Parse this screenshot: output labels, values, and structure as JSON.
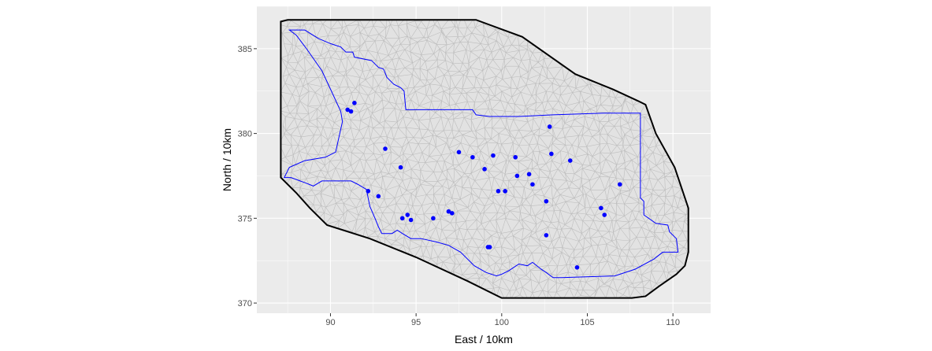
{
  "chart_data": {
    "type": "scatter",
    "title": "",
    "xlabel": "East / 10km",
    "ylabel": "North / 10km",
    "xlim": [
      85.7,
      112.2
    ],
    "ylim": [
      369.4,
      387.5
    ],
    "xticks": [
      90,
      95,
      100,
      105,
      110
    ],
    "yticks": [
      370,
      375,
      380,
      385
    ],
    "grid": true,
    "colors": {
      "panel": "#ebebeb",
      "grid": "#ffffff",
      "mesh_fill": "#e2e2e2",
      "mesh_lines": "#bdbdbd",
      "hull": "#000000",
      "boundary": "#0000ff",
      "points": "#0000ff"
    },
    "mesh_hull": [
      [
        87.1,
        386.6
      ],
      [
        87.5,
        386.7
      ],
      [
        91.8,
        386.7
      ],
      [
        93.6,
        386.7
      ],
      [
        96.0,
        386.7
      ],
      [
        98.5,
        386.7
      ],
      [
        101.2,
        385.7
      ],
      [
        104.3,
        383.5
      ],
      [
        106.5,
        382.6
      ],
      [
        108.0,
        381.9
      ],
      [
        108.4,
        381.7
      ],
      [
        109.0,
        380.0
      ],
      [
        110.1,
        378.0
      ],
      [
        110.9,
        375.6
      ],
      [
        110.9,
        373.0
      ],
      [
        110.7,
        372.2
      ],
      [
        110.2,
        371.7
      ],
      [
        109.2,
        371.0
      ],
      [
        108.4,
        370.4
      ],
      [
        107.6,
        370.3
      ],
      [
        100.0,
        370.3
      ],
      [
        98.0,
        371.3
      ],
      [
        95.0,
        372.7
      ],
      [
        92.3,
        373.8
      ],
      [
        89.8,
        374.6
      ],
      [
        88.8,
        375.6
      ],
      [
        88.0,
        376.5
      ],
      [
        87.1,
        377.4
      ],
      [
        87.1,
        384.6
      ],
      [
        87.1,
        386.1
      ]
    ],
    "study_region_boundary": [
      [
        87.6,
        386.1
      ],
      [
        88.5,
        386.1
      ],
      [
        89.3,
        385.6
      ],
      [
        90.0,
        385.3
      ],
      [
        90.6,
        385.1
      ],
      [
        90.9,
        384.8
      ],
      [
        91.3,
        384.8
      ],
      [
        91.4,
        384.5
      ],
      [
        92.4,
        384.3
      ],
      [
        92.8,
        383.9
      ],
      [
        93.1,
        383.8
      ],
      [
        93.3,
        383.3
      ],
      [
        93.7,
        382.9
      ],
      [
        94.1,
        382.7
      ],
      [
        94.3,
        382.5
      ],
      [
        94.4,
        381.4
      ],
      [
        95.8,
        381.4
      ],
      [
        98.3,
        381.4
      ],
      [
        98.5,
        381.1
      ],
      [
        99.3,
        381.0
      ],
      [
        101.0,
        381.0
      ],
      [
        103.0,
        381.1
      ],
      [
        106.0,
        381.2
      ],
      [
        108.1,
        381.2
      ],
      [
        108.1,
        376.2
      ],
      [
        108.3,
        376.0
      ],
      [
        108.3,
        375.2
      ],
      [
        109.0,
        374.7
      ],
      [
        109.7,
        374.6
      ],
      [
        109.8,
        374.2
      ],
      [
        110.2,
        373.8
      ],
      [
        110.3,
        373.0
      ],
      [
        109.4,
        373.0
      ],
      [
        108.9,
        372.6
      ],
      [
        107.8,
        372.0
      ],
      [
        106.6,
        371.6
      ],
      [
        103.5,
        371.5
      ],
      [
        103.0,
        371.5
      ],
      [
        102.6,
        371.8
      ],
      [
        102.3,
        372.0
      ],
      [
        101.8,
        372.4
      ],
      [
        101.5,
        372.2
      ],
      [
        101.0,
        372.3
      ],
      [
        100.7,
        372.1
      ],
      [
        100.4,
        371.9
      ],
      [
        100.0,
        371.7
      ],
      [
        99.7,
        371.6
      ],
      [
        99.1,
        371.8
      ],
      [
        98.4,
        372.2
      ],
      [
        97.6,
        373.0
      ],
      [
        96.9,
        373.4
      ],
      [
        96.2,
        373.6
      ],
      [
        95.3,
        373.8
      ],
      [
        94.7,
        373.8
      ],
      [
        94.2,
        374.1
      ],
      [
        93.9,
        374.3
      ],
      [
        93.6,
        374.1
      ],
      [
        93.0,
        374.1
      ],
      [
        92.8,
        374.5
      ],
      [
        92.6,
        375.0
      ],
      [
        92.3,
        375.7
      ],
      [
        92.1,
        376.7
      ],
      [
        91.6,
        377.0
      ],
      [
        91.2,
        377.2
      ],
      [
        90.1,
        377.2
      ],
      [
        89.5,
        377.2
      ],
      [
        89.0,
        376.9
      ],
      [
        88.5,
        377.1
      ],
      [
        87.7,
        377.4
      ],
      [
        87.3,
        377.4
      ],
      [
        87.6,
        378.0
      ],
      [
        88.5,
        378.4
      ],
      [
        89.7,
        378.6
      ],
      [
        90.3,
        378.9
      ],
      [
        90.5,
        379.8
      ],
      [
        90.7,
        380.7
      ],
      [
        90.6,
        381.3
      ],
      [
        90.1,
        382.4
      ],
      [
        89.5,
        383.7
      ],
      [
        88.6,
        385.0
      ],
      [
        88.0,
        385.8
      ]
    ],
    "points": [
      {
        "x": 91.4,
        "y": 381.8
      },
      {
        "x": 91.0,
        "y": 381.4
      },
      {
        "x": 91.2,
        "y": 381.3
      },
      {
        "x": 93.2,
        "y": 379.1
      },
      {
        "x": 94.1,
        "y": 378.0
      },
      {
        "x": 92.2,
        "y": 376.6
      },
      {
        "x": 92.8,
        "y": 376.3
      },
      {
        "x": 94.2,
        "y": 375.0
      },
      {
        "x": 94.5,
        "y": 375.2
      },
      {
        "x": 94.7,
        "y": 374.9
      },
      {
        "x": 96.0,
        "y": 375.0
      },
      {
        "x": 96.9,
        "y": 375.4
      },
      {
        "x": 97.1,
        "y": 375.3
      },
      {
        "x": 97.5,
        "y": 378.9
      },
      {
        "x": 98.3,
        "y": 378.6
      },
      {
        "x": 99.0,
        "y": 377.9
      },
      {
        "x": 99.5,
        "y": 378.7
      },
      {
        "x": 99.2,
        "y": 373.3
      },
      {
        "x": 99.3,
        "y": 373.3
      },
      {
        "x": 99.8,
        "y": 376.6
      },
      {
        "x": 100.2,
        "y": 376.6
      },
      {
        "x": 100.8,
        "y": 378.6
      },
      {
        "x": 100.9,
        "y": 377.5
      },
      {
        "x": 101.6,
        "y": 377.6
      },
      {
        "x": 101.8,
        "y": 377.0
      },
      {
        "x": 102.8,
        "y": 380.4
      },
      {
        "x": 102.9,
        "y": 378.8
      },
      {
        "x": 102.6,
        "y": 376.0
      },
      {
        "x": 102.6,
        "y": 374.0
      },
      {
        "x": 104.0,
        "y": 378.4
      },
      {
        "x": 104.4,
        "y": 372.1
      },
      {
        "x": 105.8,
        "y": 375.6
      },
      {
        "x": 106.0,
        "y": 375.2
      },
      {
        "x": 106.9,
        "y": 377.0
      }
    ]
  }
}
